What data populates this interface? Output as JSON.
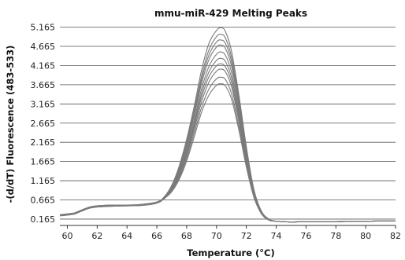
{
  "chart_data": {
    "type": "line",
    "title": "mmu-miR-429 Melting Peaks",
    "xlabel": "Temperature (°C)",
    "ylabel": "-(d/dT) Fluorescence (483-533)",
    "xlim": [
      59.5,
      82
    ],
    "ylim": [
      0,
      5.3
    ],
    "x_ticks": [
      60,
      62,
      64,
      66,
      68,
      70,
      72,
      74,
      76,
      78,
      80,
      82
    ],
    "x_tick_labels": [
      "60",
      "62",
      "64",
      "66",
      "68",
      "70",
      "72",
      "74",
      "76",
      "78",
      "80",
      "82"
    ],
    "y_ticks": [
      0.165,
      0.665,
      1.165,
      1.665,
      2.165,
      2.665,
      3.165,
      3.665,
      4.165,
      4.665,
      5.165
    ],
    "y_tick_labels": [
      "0.165",
      "0.665",
      "1.165",
      "1.665",
      "2.165",
      "2.665",
      "3.165",
      "3.665",
      "4.165",
      "4.665",
      "5.165"
    ],
    "grid": "horizontal",
    "legend": "none",
    "line_color": "#7a7a7a",
    "x": [
      59.5,
      60,
      60.5,
      61,
      61.5,
      62,
      63,
      64,
      65,
      66,
      66.5,
      67,
      67.5,
      68,
      68.5,
      69,
      69.5,
      70,
      70.3,
      70.6,
      71,
      71.5,
      72,
      72.5,
      73,
      73.5,
      74,
      75,
      76,
      78,
      80,
      82
    ],
    "series": [
      {
        "values": [
          0.27,
          0.29,
          0.32,
          0.4,
          0.47,
          0.5,
          0.52,
          0.52,
          0.54,
          0.6,
          0.75,
          1.05,
          1.55,
          2.25,
          3.1,
          4.05,
          4.75,
          5.08,
          5.15,
          5.05,
          4.55,
          3.4,
          2.05,
          0.95,
          0.38,
          0.17,
          0.11,
          0.09,
          0.1,
          0.1,
          0.11,
          0.12
        ]
      },
      {
        "values": [
          0.26,
          0.28,
          0.31,
          0.39,
          0.46,
          0.49,
          0.51,
          0.52,
          0.53,
          0.59,
          0.73,
          1.02,
          1.5,
          2.18,
          3.0,
          3.9,
          4.58,
          4.92,
          4.98,
          4.88,
          4.4,
          3.28,
          1.98,
          0.92,
          0.37,
          0.16,
          0.11,
          0.09,
          0.1,
          0.1,
          0.11,
          0.12
        ]
      },
      {
        "values": [
          0.28,
          0.3,
          0.33,
          0.41,
          0.48,
          0.51,
          0.53,
          0.53,
          0.55,
          0.61,
          0.74,
          1.0,
          1.46,
          2.12,
          2.92,
          3.8,
          4.45,
          4.78,
          4.83,
          4.74,
          4.28,
          3.2,
          1.93,
          0.9,
          0.36,
          0.16,
          0.11,
          0.09,
          0.1,
          0.1,
          0.11,
          0.12
        ]
      },
      {
        "values": [
          0.25,
          0.27,
          0.3,
          0.38,
          0.45,
          0.48,
          0.5,
          0.51,
          0.52,
          0.58,
          0.72,
          0.98,
          1.42,
          2.06,
          2.85,
          3.7,
          4.33,
          4.65,
          4.7,
          4.61,
          4.16,
          3.11,
          1.88,
          0.88,
          0.35,
          0.16,
          0.11,
          0.09,
          0.1,
          0.1,
          0.11,
          0.12
        ]
      },
      {
        "values": [
          0.27,
          0.29,
          0.32,
          0.4,
          0.47,
          0.5,
          0.52,
          0.52,
          0.54,
          0.6,
          0.72,
          0.96,
          1.38,
          1.98,
          2.74,
          3.56,
          4.15,
          4.46,
          4.52,
          4.43,
          4.0,
          2.99,
          1.81,
          0.85,
          0.34,
          0.15,
          0.11,
          0.09,
          0.1,
          0.1,
          0.11,
          0.12
        ]
      },
      {
        "values": [
          0.26,
          0.28,
          0.31,
          0.39,
          0.46,
          0.49,
          0.51,
          0.52,
          0.53,
          0.59,
          0.71,
          0.94,
          1.34,
          1.92,
          2.65,
          3.44,
          4.01,
          4.3,
          4.35,
          4.27,
          3.86,
          2.89,
          1.75,
          0.83,
          0.33,
          0.15,
          0.11,
          0.09,
          0.1,
          0.1,
          0.11,
          0.12
        ]
      },
      {
        "values": [
          0.28,
          0.3,
          0.33,
          0.41,
          0.48,
          0.51,
          0.53,
          0.53,
          0.55,
          0.61,
          0.72,
          0.93,
          1.31,
          1.87,
          2.58,
          3.34,
          3.88,
          4.16,
          4.21,
          4.13,
          3.74,
          2.8,
          1.7,
          0.81,
          0.33,
          0.15,
          0.11,
          0.09,
          0.1,
          0.1,
          0.11,
          0.12
        ]
      },
      {
        "values": [
          0.25,
          0.27,
          0.3,
          0.38,
          0.45,
          0.48,
          0.5,
          0.51,
          0.52,
          0.58,
          0.7,
          0.92,
          1.28,
          1.82,
          2.5,
          3.22,
          3.74,
          4.02,
          4.07,
          4.0,
          3.62,
          2.71,
          1.65,
          0.79,
          0.32,
          0.15,
          0.11,
          0.09,
          0.1,
          0.1,
          0.11,
          0.12
        ]
      },
      {
        "values": [
          0.27,
          0.29,
          0.32,
          0.4,
          0.47,
          0.5,
          0.52,
          0.52,
          0.54,
          0.6,
          0.71,
          0.9,
          1.24,
          1.75,
          2.4,
          3.08,
          3.56,
          3.82,
          3.86,
          3.8,
          3.44,
          2.58,
          1.58,
          0.76,
          0.31,
          0.14,
          0.11,
          0.09,
          0.1,
          0.1,
          0.11,
          0.12
        ]
      },
      {
        "values": [
          0.26,
          0.28,
          0.31,
          0.39,
          0.46,
          0.49,
          0.51,
          0.52,
          0.53,
          0.59,
          0.7,
          0.88,
          1.2,
          1.68,
          2.3,
          2.95,
          3.4,
          3.65,
          3.69,
          3.63,
          3.3,
          2.48,
          1.52,
          0.74,
          0.31,
          0.14,
          0.11,
          0.09,
          0.1,
          0.1,
          0.11,
          0.12
        ]
      }
    ]
  }
}
